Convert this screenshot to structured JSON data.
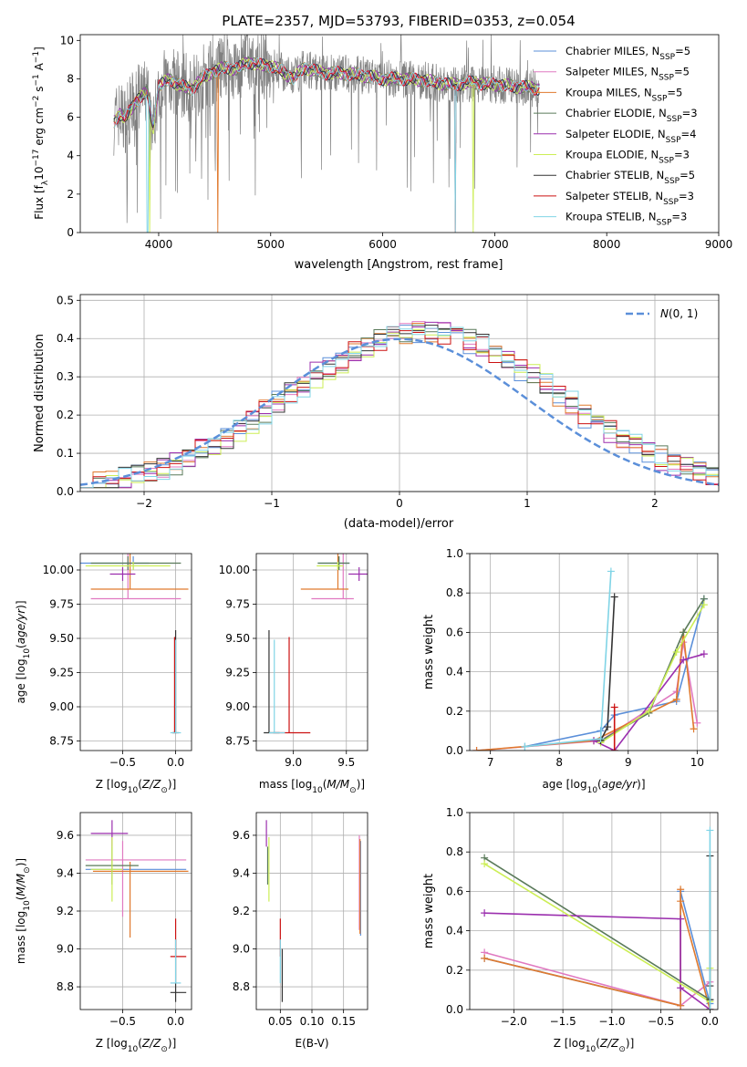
{
  "page_title": "PLATE=2357, MJD=53793, FIBERID=0353, z=0.054",
  "models": [
    {
      "name": "Chabrier MILES, N",
      "sub": "SSP",
      "suffix": "=5",
      "color": "#5b8fd9"
    },
    {
      "name": "Salpeter MILES, N",
      "sub": "SSP",
      "suffix": "=5",
      "color": "#e07ac1"
    },
    {
      "name": "Kroupa MILES, N",
      "sub": "SSP",
      "suffix": "=5",
      "color": "#e07a2e"
    },
    {
      "name": "Chabrier ELODIE, N",
      "sub": "SSP",
      "suffix": "=3",
      "color": "#5a7a5a"
    },
    {
      "name": "Salpeter ELODIE, N",
      "sub": "SSP",
      "suffix": "=4",
      "color": "#9b2fae"
    },
    {
      "name": "Kroupa ELODIE, N",
      "sub": "SSP",
      "suffix": "=3",
      "color": "#ccee55"
    },
    {
      "name": "Chabrier STELIB, N",
      "sub": "SSP",
      "suffix": "=5",
      "color": "#333333"
    },
    {
      "name": "Salpeter STELIB, N",
      "sub": "SSP",
      "suffix": "=3",
      "color": "#cc1111"
    },
    {
      "name": "Kroupa STELIB, N",
      "sub": "SSP",
      "suffix": "=3",
      "color": "#80d4e6"
    }
  ],
  "chart_data": [
    {
      "id": "spectrum",
      "type": "line",
      "xlabel": "wavelength [Angstrom, rest frame]",
      "ylabel_main": "Flux [f",
      "ylabel_sub": "λ",
      "ylabel_rest": "10",
      "ylabel_sup1": "−17",
      "ylabel_unit": " erg cm",
      "ylabel_sup2": "−2",
      "ylabel_s": " s",
      "ylabel_sup3": "−1",
      "ylabel_A": " A",
      "ylabel_sup4": "−1",
      "ylabel_end": "]",
      "xlim": [
        3300,
        9000
      ],
      "ylim": [
        0,
        10.3
      ],
      "xticks": [
        4000,
        5000,
        6000,
        7000,
        8000,
        9000
      ],
      "yticks": [
        0,
        2,
        4,
        6,
        8,
        10
      ],
      "data_color": "#808080",
      "data_range": [
        3600,
        7400
      ],
      "model_anchors": [
        [
          3600,
          5.8
        ],
        [
          3650,
          6.2
        ],
        [
          3700,
          5.9
        ],
        [
          3800,
          6.9
        ],
        [
          3900,
          7.3
        ],
        [
          3950,
          5.4
        ],
        [
          4000,
          7.6
        ],
        [
          4100,
          8.0
        ],
        [
          4200,
          7.6
        ],
        [
          4300,
          7.5
        ],
        [
          4400,
          8.1
        ],
        [
          4500,
          8.4
        ],
        [
          4600,
          8.6
        ],
        [
          4700,
          8.5
        ],
        [
          4800,
          8.9
        ],
        [
          4900,
          8.7
        ],
        [
          5000,
          8.7
        ],
        [
          5100,
          8.4
        ],
        [
          5200,
          8.0
        ],
        [
          5300,
          8.6
        ],
        [
          5400,
          8.4
        ],
        [
          5500,
          8.3
        ],
        [
          5600,
          8.3
        ],
        [
          5800,
          8.2
        ],
        [
          6000,
          8.0
        ],
        [
          6200,
          8.0
        ],
        [
          6400,
          7.9
        ],
        [
          6600,
          7.7
        ],
        [
          6800,
          7.8
        ],
        [
          7000,
          7.7
        ],
        [
          7200,
          7.6
        ],
        [
          7400,
          7.5
        ]
      ]
    },
    {
      "id": "residuals",
      "type": "bar",
      "xlabel": "(data-model)/error",
      "ylabel": "Normed distribution",
      "xlim": [
        -2.5,
        2.5
      ],
      "ylim": [
        0,
        0.515
      ],
      "xticks": [
        -2,
        -1,
        0,
        1,
        2
      ],
      "yticks": [
        0.0,
        0.1,
        0.2,
        0.3,
        0.4,
        0.5
      ],
      "legend": "N(0,1)",
      "legend_position": "top-right",
      "bin_width": 0.1
    },
    {
      "id": "age_vs_Z",
      "type": "scatter",
      "xlabel_main": "Z [log",
      "xlabel_sub": "10",
      "xlabel_rest": "(Z/Z",
      "xlabel_sub2": "⊙",
      "xlabel_end": ")]",
      "ylabel_main": "age  [log",
      "ylabel_sub": "10",
      "ylabel_rest": "(age/yr)]",
      "xlim": [
        -0.9,
        0.15
      ],
      "ylim": [
        8.68,
        10.12
      ],
      "xticks": [
        -0.5,
        0.0
      ],
      "yticks": [
        8.75,
        9.0,
        9.25,
        9.5,
        9.75,
        10.0
      ],
      "points": [
        {
          "m": 0,
          "x": -0.4,
          "y": 10.05,
          "xerr": [
            0.5,
            0.15
          ],
          "yerr": [
            0.05,
            0.05
          ]
        },
        {
          "m": 1,
          "x": -0.45,
          "y": 9.79,
          "xerr": [
            0.35,
            0.5
          ],
          "yerr": [
            0.0,
            0.35
          ]
        },
        {
          "m": 2,
          "x": -0.43,
          "y": 9.86,
          "xerr": [
            0.37,
            0.55
          ],
          "yerr": [
            0.0,
            0.42
          ]
        },
        {
          "m": 3,
          "x": -0.45,
          "y": 10.05,
          "xerr": [
            0.35,
            0.5
          ],
          "yerr": [
            0.05,
            0.05
          ]
        },
        {
          "m": 4,
          "x": -0.5,
          "y": 9.97,
          "xerr": [
            0.12,
            0.12
          ],
          "yerr": [
            0.05,
            0.05
          ]
        },
        {
          "m": 5,
          "x": -0.4,
          "y": 10.03,
          "xerr": [
            0.45,
            0.35
          ],
          "yerr": [
            0.03,
            0.03
          ]
        },
        {
          "m": 6,
          "x": 0.0,
          "y": 8.81,
          "xerr": [
            0.03,
            0.03
          ],
          "yerr": [
            0.0,
            0.75
          ]
        },
        {
          "m": 7,
          "x": -0.01,
          "y": 8.81,
          "xerr": [
            0.02,
            0.02
          ],
          "yerr": [
            0.0,
            0.7
          ]
        },
        {
          "m": 8,
          "x": 0.0,
          "y": 8.81,
          "xerr": [
            0.05,
            0.05
          ],
          "yerr": [
            0.0,
            0.68
          ]
        }
      ]
    },
    {
      "id": "age_vs_mass",
      "type": "scatter",
      "xlabel_main": "mass [log",
      "xlabel_sub": "10",
      "xlabel_rest": "(M/M",
      "xlabel_sub2": "⊙",
      "xlabel_end": ")]",
      "xlim": [
        8.65,
        9.7
      ],
      "ylim": [
        8.68,
        10.12
      ],
      "xticks": [
        9.0,
        9.5
      ],
      "yticks": [
        8.75,
        9.0,
        9.25,
        9.5,
        9.75,
        10.0
      ],
      "points": [
        {
          "m": 0,
          "x": 9.43,
          "y": 10.05,
          "xerr": [
            0.2,
            0.1
          ],
          "yerr": [
            0.05,
            0.05
          ]
        },
        {
          "m": 1,
          "x": 9.47,
          "y": 9.79,
          "xerr": [
            0.3,
            0.1
          ],
          "yerr": [
            0.0,
            0.35
          ]
        },
        {
          "m": 2,
          "x": 9.42,
          "y": 9.86,
          "xerr": [
            0.35,
            0.1
          ],
          "yerr": [
            0.0,
            0.42
          ]
        },
        {
          "m": 3,
          "x": 9.43,
          "y": 10.05,
          "xerr": [
            0.2,
            0.1
          ],
          "yerr": [
            0.05,
            0.05
          ]
        },
        {
          "m": 4,
          "x": 9.62,
          "y": 9.97,
          "xerr": [
            0.1,
            0.1
          ],
          "yerr": [
            0.05,
            0.05
          ]
        },
        {
          "m": 5,
          "x": 9.42,
          "y": 10.03,
          "xerr": [
            0.2,
            0.05
          ],
          "yerr": [
            0.03,
            0.03
          ]
        },
        {
          "m": 6,
          "x": 8.77,
          "y": 8.81,
          "xerr": [
            0.05,
            0.1
          ],
          "yerr": [
            0.0,
            0.75
          ]
        },
        {
          "m": 7,
          "x": 8.96,
          "y": 8.81,
          "xerr": [
            0.15,
            0.2
          ],
          "yerr": [
            0.0,
            0.7
          ]
        },
        {
          "m": 8,
          "x": 8.82,
          "y": 8.81,
          "xerr": [
            0.05,
            0.1
          ],
          "yerr": [
            0.0,
            0.68
          ]
        }
      ]
    },
    {
      "id": "weight_vs_age",
      "type": "line",
      "xlabel_main": "age  [log",
      "xlabel_sub": "10",
      "xlabel_rest": "(age/yr)]",
      "ylabel": "mass weight",
      "xlim": [
        6.7,
        10.3
      ],
      "ylim": [
        0,
        1.0
      ],
      "xticks": [
        7,
        8,
        9,
        10
      ],
      "yticks": [
        0.0,
        0.2,
        0.4,
        0.6,
        0.8,
        1.0
      ],
      "series": [
        {
          "m": 0,
          "x": [
            7.5,
            8.6,
            8.8,
            9.7,
            10.1
          ],
          "y": [
            0.02,
            0.1,
            0.18,
            0.25,
            0.77
          ]
        },
        {
          "m": 1,
          "x": [
            6.8,
            8.6,
            9.7,
            9.8,
            10.0
          ],
          "y": [
            0.0,
            0.05,
            0.3,
            0.55,
            0.14
          ]
        },
        {
          "m": 2,
          "x": [
            6.8,
            8.5,
            9.7,
            9.8,
            9.95
          ],
          "y": [
            0.0,
            0.05,
            0.26,
            0.6,
            0.11
          ]
        },
        {
          "m": 3,
          "x": [
            8.6,
            9.3,
            9.8,
            10.1
          ],
          "y": [
            0.05,
            0.19,
            0.6,
            0.77
          ]
        },
        {
          "m": 4,
          "x": [
            8.5,
            8.8,
            9.8,
            10.1
          ],
          "y": [
            0.05,
            0.0,
            0.46,
            0.49
          ]
        },
        {
          "m": 5,
          "x": [
            8.6,
            9.3,
            9.7,
            10.1
          ],
          "y": [
            0.04,
            0.2,
            0.5,
            0.74
          ]
        },
        {
          "m": 6,
          "x": [
            8.6,
            8.7,
            8.8
          ],
          "y": [
            0.05,
            0.12,
            0.78
          ]
        },
        {
          "m": 7,
          "x": [
            8.8,
            8.8
          ],
          "y": [
            0.22,
            0.0
          ]
        },
        {
          "m": 8,
          "x": [
            7.5,
            8.6,
            8.75
          ],
          "y": [
            0.02,
            0.06,
            0.91
          ]
        }
      ]
    },
    {
      "id": "mass_vs_Z",
      "type": "scatter",
      "xlabel_main": "Z [log",
      "xlabel_sub": "10",
      "xlabel_rest": "(Z/Z",
      "xlabel_sub2": "⊙",
      "xlabel_end": ")]",
      "ylabel_main": "mass [log",
      "ylabel_sub": "10",
      "ylabel_rest": "(M/M",
      "ylabel_sub2": "⊙",
      "ylabel_end": ")]",
      "xlim": [
        -0.9,
        0.15
      ],
      "ylim": [
        8.68,
        9.72
      ],
      "xticks": [
        -0.5,
        0.0
      ],
      "yticks": [
        8.8,
        9.0,
        9.2,
        9.4,
        9.6
      ],
      "points": [
        {
          "m": 0,
          "x": -0.6,
          "y": 9.42,
          "xerr": [
            0.25,
            0.7
          ],
          "yerr": [
            0.0,
            0.0
          ]
        },
        {
          "m": 1,
          "x": -0.5,
          "y": 9.47,
          "xerr": [
            0.35,
            0.6
          ],
          "yerr": [
            0.3,
            0.1
          ]
        },
        {
          "m": 2,
          "x": -0.43,
          "y": 9.41,
          "xerr": [
            0.35,
            0.55
          ],
          "yerr": [
            0.35,
            0.05
          ]
        },
        {
          "m": 3,
          "x": -0.6,
          "y": 9.44,
          "xerr": [
            0.25,
            0.25
          ],
          "yerr": [
            0.1,
            0.1
          ]
        },
        {
          "m": 4,
          "x": -0.6,
          "y": 9.61,
          "xerr": [
            0.2,
            0.15
          ],
          "yerr": [
            0.07,
            0.07
          ]
        },
        {
          "m": 5,
          "x": -0.6,
          "y": 9.42,
          "xerr": [
            0.2,
            0.1
          ],
          "yerr": [
            0.17,
            0.17
          ]
        },
        {
          "m": 6,
          "x": 0.0,
          "y": 8.77,
          "xerr": [
            0.05,
            0.1
          ],
          "yerr": [
            0.05,
            0.28
          ]
        },
        {
          "m": 7,
          "x": 0.0,
          "y": 8.96,
          "xerr": [
            0.05,
            0.1
          ],
          "yerr": [
            0.0,
            0.2
          ]
        },
        {
          "m": 8,
          "x": 0.0,
          "y": 8.82,
          "xerr": [
            0.05,
            0.05
          ],
          "yerr": [
            0.0,
            0.23
          ]
        }
      ]
    },
    {
      "id": "mass_vs_ebv",
      "type": "scatter",
      "xlabel": "E(B-V)",
      "xlim": [
        0.012,
        0.188
      ],
      "ylim": [
        8.68,
        9.72
      ],
      "xticks": [
        0.05,
        0.1,
        0.15
      ],
      "xticklabels": [
        "0.05",
        "0.10",
        "0.15"
      ],
      "yticks": [
        8.8,
        9.0,
        9.2,
        9.4,
        9.6
      ],
      "points": [
        {
          "m": 0,
          "x": 0.177,
          "y": 9.37,
          "xerr": [
            0,
            0
          ],
          "yerr": [
            0.3,
            0.2
          ]
        },
        {
          "m": 1,
          "x": 0.175,
          "y": 9.35,
          "xerr": [
            0,
            0
          ],
          "yerr": [
            0.25,
            0.25
          ]
        },
        {
          "m": 2,
          "x": 0.176,
          "y": 9.33,
          "xerr": [
            0.0,
            0.0
          ],
          "yerr": [
            0.25,
            0.25
          ]
        },
        {
          "m": 3,
          "x": 0.03,
          "y": 9.44,
          "xerr": [
            0,
            0
          ],
          "yerr": [
            0.1,
            0.1
          ]
        },
        {
          "m": 4,
          "x": 0.028,
          "y": 9.61,
          "xerr": [
            0,
            0
          ],
          "yerr": [
            0.07,
            0.07
          ]
        },
        {
          "m": 5,
          "x": 0.032,
          "y": 9.42,
          "xerr": [
            0,
            0
          ],
          "yerr": [
            0.17,
            0.17
          ]
        },
        {
          "m": 6,
          "x": 0.053,
          "y": 8.77,
          "xerr": [
            0,
            0
          ],
          "yerr": [
            0.05,
            0.23
          ]
        },
        {
          "m": 7,
          "x": 0.05,
          "y": 8.96,
          "xerr": [
            0,
            0
          ],
          "yerr": [
            0.0,
            0.2
          ]
        },
        {
          "m": 8,
          "x": 0.05,
          "y": 8.82,
          "xerr": [
            0,
            0
          ],
          "yerr": [
            0.0,
            0.23
          ]
        }
      ]
    },
    {
      "id": "weight_vs_Z",
      "type": "line",
      "xlabel_main": "Z [log",
      "xlabel_sub": "10",
      "xlabel_rest": "(Z/Z",
      "xlabel_sub2": "⊙",
      "xlabel_end": ")]",
      "ylabel": "mass weight",
      "xlim": [
        -2.45,
        0.08
      ],
      "ylim": [
        0,
        1.0
      ],
      "xticks": [
        -2.0,
        -1.5,
        -1.0,
        -0.5,
        0.0
      ],
      "xticklabels": [
        "−2.0",
        "−1.5",
        "−1.0",
        "−0.5",
        "0.0"
      ],
      "yticks": [
        0.0,
        0.2,
        0.4,
        0.6,
        0.8,
        1.0
      ],
      "series": [
        {
          "m": 0,
          "x": [
            -2.3,
            -0.3,
            -0.3,
            0.0
          ],
          "y": [
            0.26,
            0.02,
            0.6,
            0.03
          ]
        },
        {
          "m": 1,
          "x": [
            -2.3,
            -0.3,
            0.0
          ],
          "y": [
            0.29,
            0.02,
            0.14
          ]
        },
        {
          "m": 2,
          "x": [
            -2.3,
            -0.3,
            -0.3,
            -0.3,
            0.0
          ],
          "y": [
            0.26,
            0.02,
            0.61,
            0.55,
            0.0
          ]
        },
        {
          "m": 3,
          "x": [
            -2.3,
            0.0,
            0.0
          ],
          "y": [
            0.77,
            0.05,
            0.0
          ]
        },
        {
          "m": 4,
          "x": [
            -2.3,
            -0.3,
            -0.3,
            0.0
          ],
          "y": [
            0.49,
            0.46,
            0.11,
            0.0
          ]
        },
        {
          "m": 5,
          "x": [
            -2.3,
            0.0,
            0.0
          ],
          "y": [
            0.74,
            0.04,
            0.21
          ]
        },
        {
          "m": 6,
          "x": [
            0.0,
            0.0,
            0.0
          ],
          "y": [
            0.78,
            0.12,
            0.05
          ]
        },
        {
          "m": 7,
          "x": [
            0.0,
            0.0
          ],
          "y": [
            0.0,
            0.0
          ]
        },
        {
          "m": 8,
          "x": [
            0.0,
            0.0
          ],
          "y": [
            0.91,
            0.0
          ]
        }
      ]
    }
  ]
}
